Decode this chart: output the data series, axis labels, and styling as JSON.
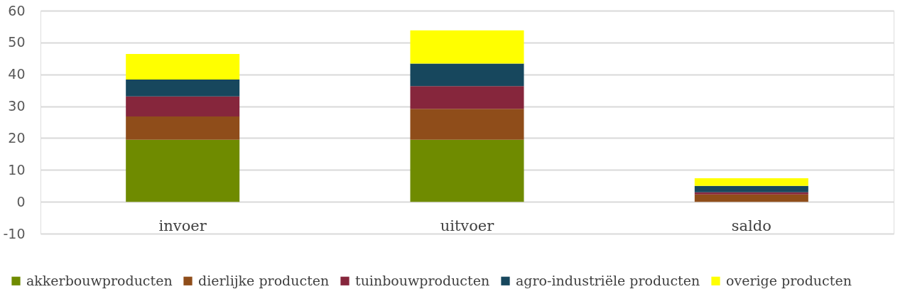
{
  "chart_data": {
    "type": "bar",
    "stacked": true,
    "categories": [
      "invoer",
      "uitvoer",
      "saldo"
    ],
    "series": [
      {
        "name": "akkerbouwproducten",
        "color": "#6f8b00",
        "values": [
          19.5,
          19.5,
          0
        ]
      },
      {
        "name": "dierlijke producten",
        "color": "#8f4d1a",
        "values": [
          7.3,
          9.7,
          2.3
        ]
      },
      {
        "name": "tuinbouwproducten",
        "color": "#86263c",
        "values": [
          6.3,
          7.1,
          0.7
        ]
      },
      {
        "name": "agro-industriële producten",
        "color": "#17475d",
        "values": [
          5.3,
          7.1,
          2.0
        ]
      },
      {
        "name": "overige producten",
        "color": "#ffff00",
        "values": [
          8.0,
          10.4,
          2.4
        ]
      }
    ],
    "ylim": [
      -10,
      60
    ],
    "yticks": [
      -10,
      0,
      10,
      20,
      30,
      40,
      50,
      60
    ],
    "grid": "y",
    "legend": "bottom"
  }
}
